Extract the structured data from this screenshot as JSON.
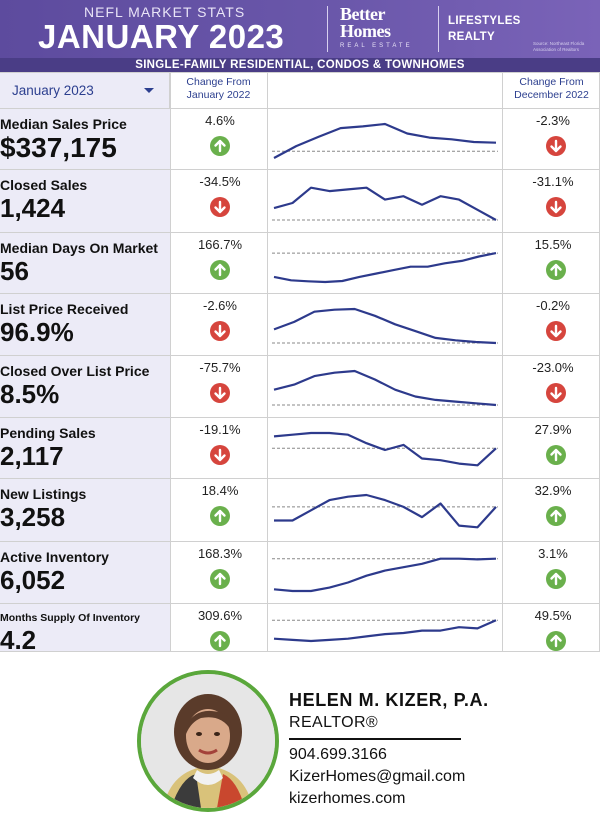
{
  "header": {
    "subtitle": "NEFL MARKET STATS",
    "title": "JANUARY 2023",
    "logo_line1": "Better",
    "logo_line2": "Homes",
    "logo_line3": "REAL ESTATE",
    "brokerage_line1": "LIFESTYLES",
    "brokerage_line2": "REALTY",
    "source_line1": "Source: Northeast Florida",
    "source_line2": "Association of Realtors",
    "banner": "SINGLE-FAMILY RESIDENTIAL, CONDOS & TOWNHOMES"
  },
  "table": {
    "period_select": "January 2023",
    "col_yoy_line1": "Change From",
    "col_yoy_line2": "January 2022",
    "col_mom_line1": "Change From",
    "col_mom_line2": "December 2022",
    "rows": [
      {
        "label": "Median Sales Price",
        "value": "$337,175",
        "yoy": "4.6%",
        "yoy_dir": "up",
        "mom": "-2.3%",
        "mom_dir": "down",
        "trend": [
          0.0,
          0.35,
          0.62,
          0.88,
          0.93,
          1.0,
          0.72,
          0.6,
          0.55,
          0.47,
          0.45
        ],
        "baseline": 0.2
      },
      {
        "label": "Closed Sales",
        "value": "1,424",
        "yoy": "-34.5%",
        "yoy_dir": "down",
        "mom": "-31.1%",
        "mom_dir": "down",
        "trend": [
          0.35,
          0.5,
          0.95,
          0.85,
          0.9,
          0.95,
          0.6,
          0.7,
          0.45,
          0.7,
          0.6,
          0.3,
          0.0
        ],
        "baseline": 0.0
      },
      {
        "label": "Median Days On Market",
        "value": "56",
        "yoy": "166.7%",
        "yoy_dir": "up",
        "mom": "15.5%",
        "mom_dir": "up",
        "trend": [
          0.15,
          0.05,
          0.02,
          0.0,
          0.03,
          0.15,
          0.25,
          0.35,
          0.45,
          0.45,
          0.55,
          0.62,
          0.75,
          0.85
        ],
        "baseline": 0.85
      },
      {
        "label": "List Price Received",
        "value": "96.9%",
        "yoy": "-2.6%",
        "yoy_dir": "down",
        "mom": "-0.2%",
        "mom_dir": "down",
        "trend": [
          0.4,
          0.62,
          0.92,
          0.98,
          1.0,
          0.8,
          0.55,
          0.35,
          0.15,
          0.08,
          0.03,
          0.0
        ],
        "baseline": 0.0
      },
      {
        "label": "Closed Over List Price",
        "value": "8.5%",
        "yoy": "-75.7%",
        "yoy_dir": "down",
        "mom": "-23.0%",
        "mom_dir": "down",
        "trend": [
          0.45,
          0.6,
          0.85,
          0.95,
          1.0,
          0.75,
          0.45,
          0.25,
          0.15,
          0.1,
          0.05,
          0.0
        ],
        "baseline": 0.0
      },
      {
        "label": "Pending Sales",
        "value": "2,117",
        "yoy": "-19.1%",
        "yoy_dir": "down",
        "mom": "27.9%",
        "mom_dir": "up",
        "trend": [
          0.9,
          0.95,
          1.0,
          1.0,
          0.95,
          0.7,
          0.5,
          0.65,
          0.25,
          0.2,
          0.1,
          0.05,
          0.55
        ],
        "baseline": 0.55
      },
      {
        "label": "New Listings",
        "value": "3,258",
        "yoy": "18.4%",
        "yoy_dir": "up",
        "mom": "32.9%",
        "mom_dir": "up",
        "trend": [
          0.25,
          0.25,
          0.55,
          0.85,
          0.95,
          1.0,
          0.85,
          0.65,
          0.35,
          0.75,
          0.1,
          0.05,
          0.65
        ],
        "baseline": 0.65
      },
      {
        "label": "Active Inventory",
        "value": "6,052",
        "yoy": "168.3%",
        "yoy_dir": "up",
        "mom": "3.1%",
        "mom_dir": "up",
        "trend": [
          0.05,
          0.0,
          0.0,
          0.1,
          0.25,
          0.45,
          0.6,
          0.7,
          0.8,
          0.95,
          0.95,
          0.93,
          0.95
        ],
        "baseline": 0.95
      },
      {
        "label": "Months Supply Of Inventory",
        "value": "4.2",
        "yoy": "309.6%",
        "yoy_dir": "up",
        "mom": "49.5%",
        "mom_dir": "up",
        "trend": [
          0.1,
          0.05,
          0.0,
          0.05,
          0.1,
          0.2,
          0.3,
          0.35,
          0.45,
          0.45,
          0.6,
          0.55,
          0.9
        ],
        "baseline": 0.9
      }
    ]
  },
  "agent": {
    "name": "HELEN M. KIZER, P.A.",
    "title": "REALTOR®",
    "phone": "904.699.3166",
    "email": "KizerHomes@gmail.com",
    "website": "kizerhomes.com"
  },
  "colors": {
    "header_purple": "#6a57aa",
    "banner_purple": "#4a3d86",
    "label_bg": "#ecebf7",
    "up_green": "#6ab04c",
    "down_red": "#d6453d",
    "spark_line": "#2d3a8c",
    "photo_ring": "#5aa73b"
  }
}
